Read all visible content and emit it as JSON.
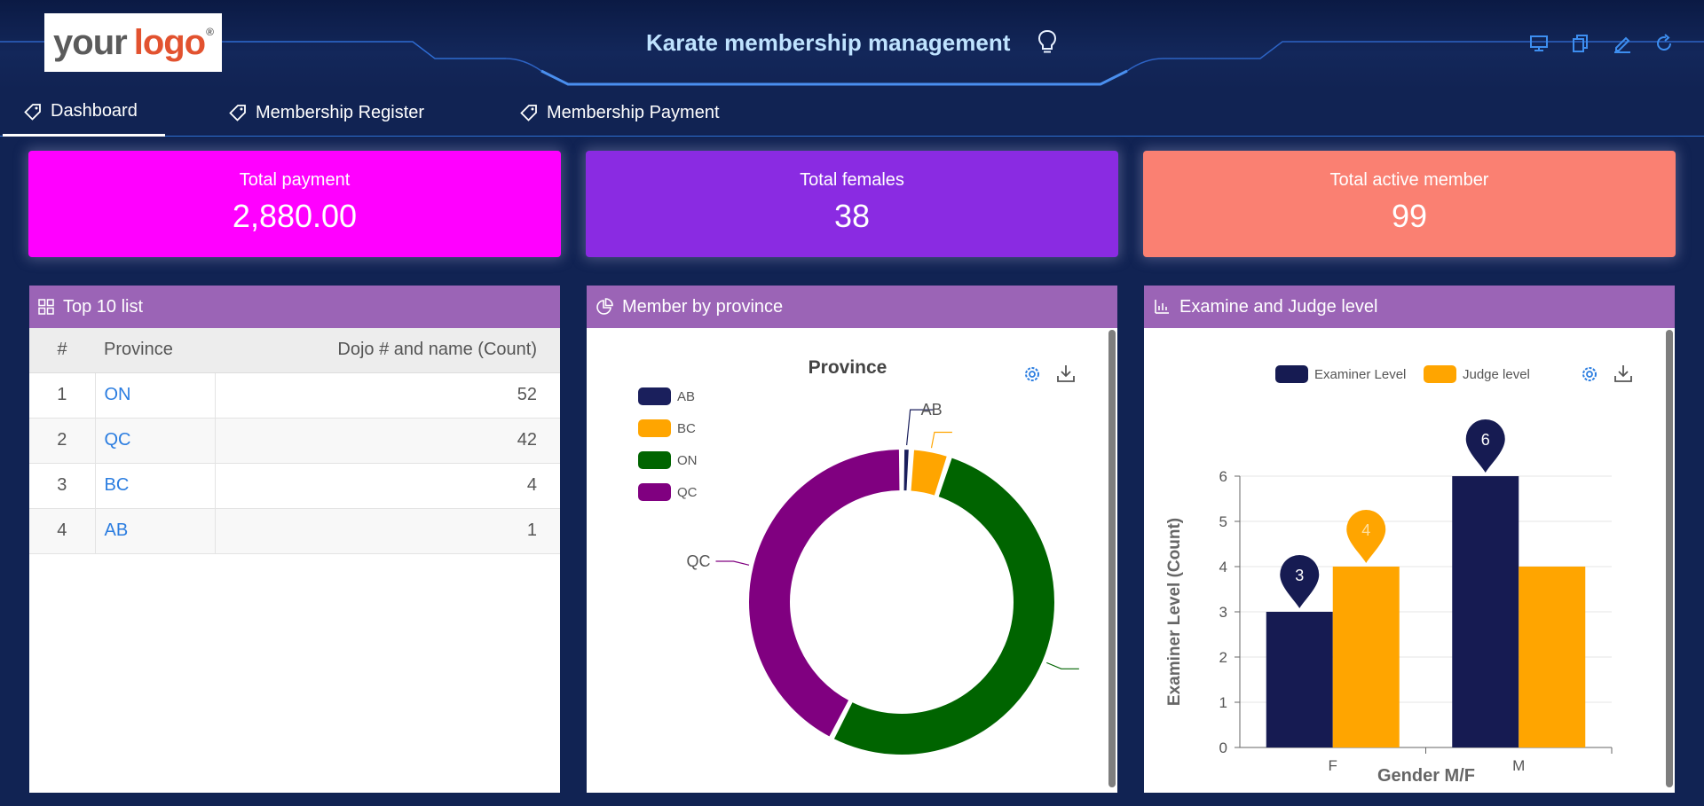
{
  "header": {
    "logo_text_1": "your",
    "logo_text_2": "logo",
    "logo_reg": "®",
    "title": "Karate membership management"
  },
  "tabs": [
    {
      "label": "Dashboard",
      "active": true
    },
    {
      "label": "Membership Register",
      "active": false
    },
    {
      "label": "Membership Payment",
      "active": false
    }
  ],
  "kpis": [
    {
      "label": "Total payment",
      "value": "2,880.00",
      "color": "#ff00ff"
    },
    {
      "label": "Total females",
      "value": "38",
      "color": "#8a2be2"
    },
    {
      "label": "Total active member",
      "value": "99",
      "color": "#fa8072"
    }
  ],
  "top10": {
    "title": "Top 10 list",
    "columns": [
      "#",
      "Province",
      "Dojo # and name (Count)"
    ],
    "rows": [
      {
        "idx": "1",
        "province": "ON",
        "count": "52"
      },
      {
        "idx": "2",
        "province": "QC",
        "count": "42"
      },
      {
        "idx": "3",
        "province": "BC",
        "count": "4"
      },
      {
        "idx": "4",
        "province": "AB",
        "count": "1"
      }
    ]
  },
  "province_panel": {
    "title": "Member by province"
  },
  "level_panel": {
    "title": "Examine and Judge level"
  },
  "chart_data": [
    {
      "type": "pie",
      "donut": true,
      "title": "Province",
      "categories": [
        "AB",
        "BC",
        "ON",
        "QC"
      ],
      "values": [
        1,
        4,
        52,
        42
      ],
      "colors": [
        "#1a1f5c",
        "#ffa500",
        "#006400",
        "#800080"
      ],
      "legend_position": "top-left"
    },
    {
      "type": "bar",
      "categories": [
        "F",
        "M"
      ],
      "series": [
        {
          "name": "Examiner Level",
          "values": [
            3,
            6
          ],
          "color": "#161b52"
        },
        {
          "name": "Judge level",
          "values": [
            4,
            4
          ],
          "color": "#ffa500"
        }
      ],
      "xlabel": "Gender M/F",
      "ylabel": "Examiner Level (Count)",
      "ylim": [
        0,
        6
      ],
      "yticks": [
        0,
        1,
        2,
        3,
        4,
        5,
        6
      ],
      "grid": true,
      "legend_position": "top"
    }
  ]
}
